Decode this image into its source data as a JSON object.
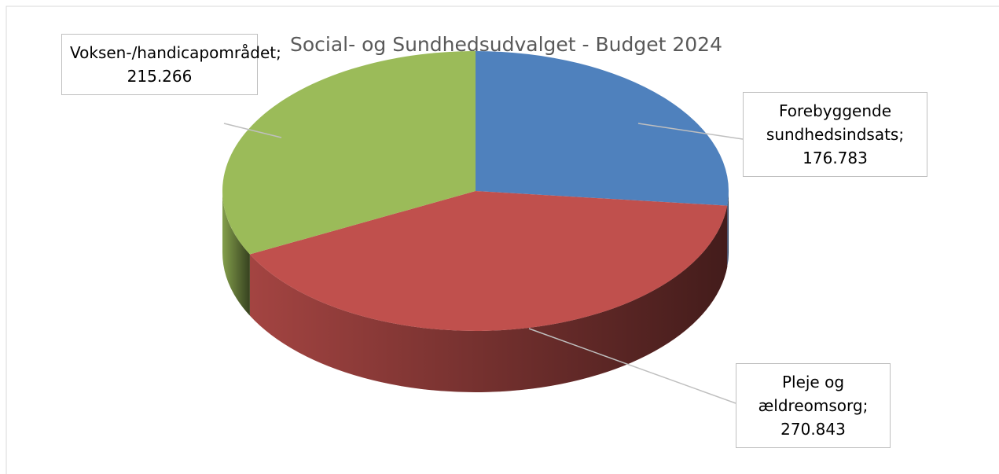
{
  "chart_data": {
    "type": "pie",
    "title": "Social- og Sundhedsudvalget - Budget 2024",
    "categories": [
      "Forebyggende sundhedsindsats",
      "Pleje og ældreomsorg",
      "Voksen-/handicapområdet"
    ],
    "values": [
      176783,
      270843,
      215266
    ],
    "value_labels": [
      "176.783",
      "270.843",
      "215.266"
    ],
    "label_separator": ";",
    "colors": [
      "#4f81bd",
      "#c0504d",
      "#9bbb59"
    ]
  }
}
